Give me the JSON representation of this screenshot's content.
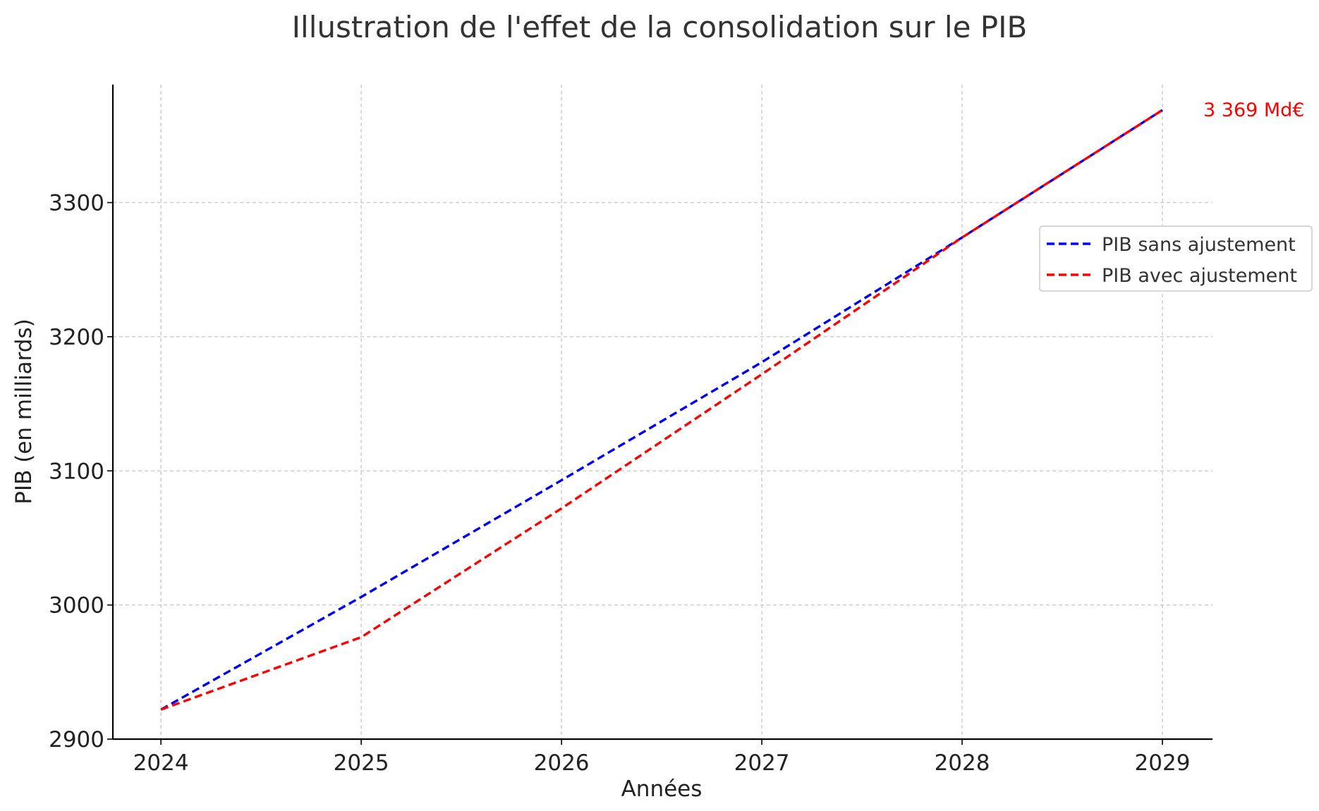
{
  "chart_data": {
    "type": "line",
    "title": "Illustration de l'effet de la consolidation sur le PIB",
    "xlabel": "Années",
    "ylabel": "PIB (en milliards)",
    "x": [
      2024,
      2025,
      2026,
      2027,
      2028,
      2029
    ],
    "xlim": [
      2023.76,
      2029.25
    ],
    "ylim": [
      2900,
      3388
    ],
    "yticks": [
      2900,
      3000,
      3100,
      3200,
      3300
    ],
    "grid": true,
    "legend_position": "center-right",
    "series": [
      {
        "name": "PIB sans ajustement",
        "color": "#0000ff",
        "values": [
          2922,
          3006,
          3093,
          3181,
          3274,
          3369
        ]
      },
      {
        "name": "PIB avec ajustement",
        "color": "#ff0000",
        "values": [
          2922,
          2976,
          3072,
          3172,
          3274,
          3369
        ]
      }
    ],
    "annotations": [
      {
        "text": "3 369 Md€",
        "x": 2029,
        "y": 3369,
        "color": "#ff0000"
      }
    ]
  }
}
